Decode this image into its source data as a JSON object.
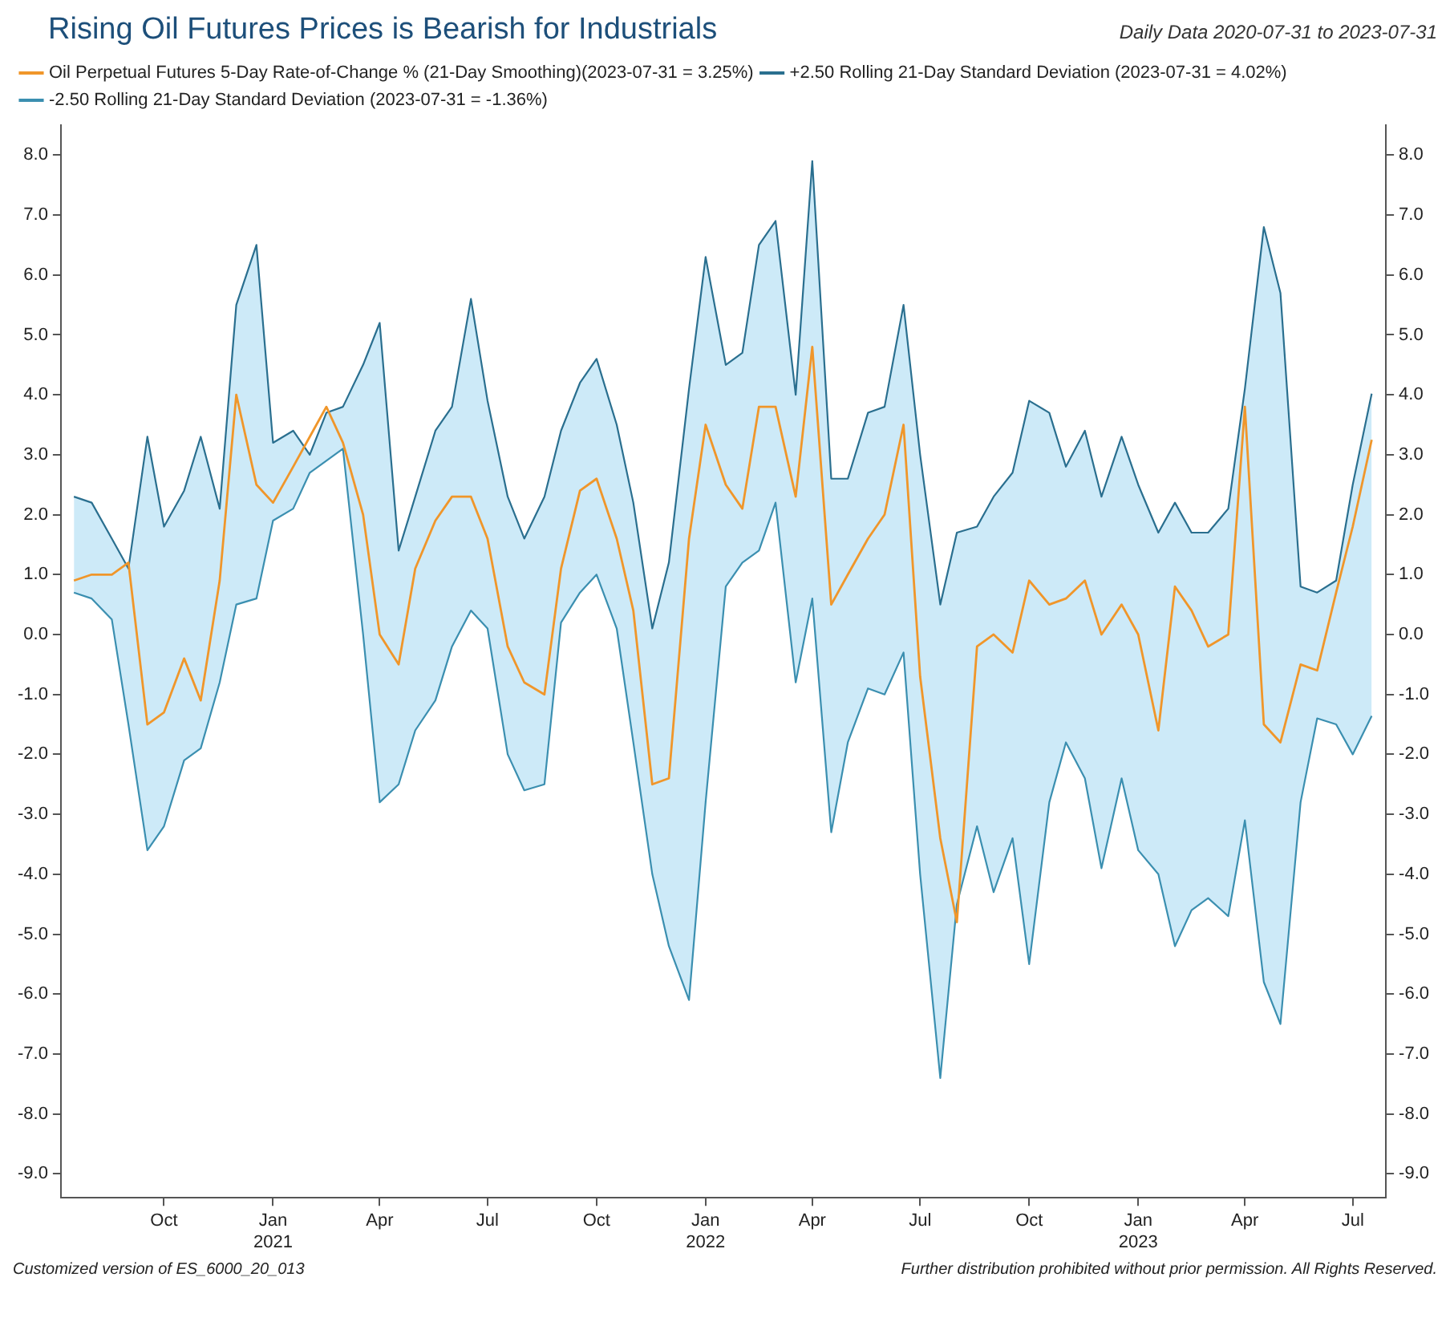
{
  "chart_data": {
    "type": "line",
    "title": "Rising Oil Futures Prices is Bearish for Industrials",
    "subtitle": "Daily Data 2020-07-31 to 2023-07-31",
    "x": [
      "2020-07-31",
      "2020-08-15",
      "2020-09-01",
      "2020-09-15",
      "2020-10-01",
      "2020-10-15",
      "2020-11-01",
      "2020-11-15",
      "2020-12-01",
      "2020-12-15",
      "2021-01-01",
      "2021-01-15",
      "2021-02-01",
      "2021-02-15",
      "2021-03-01",
      "2021-03-15",
      "2021-04-01",
      "2021-04-15",
      "2021-05-01",
      "2021-05-15",
      "2021-06-01",
      "2021-06-15",
      "2021-07-01",
      "2021-07-15",
      "2021-08-01",
      "2021-08-15",
      "2021-09-01",
      "2021-09-15",
      "2021-10-01",
      "2021-10-15",
      "2021-11-01",
      "2021-11-15",
      "2021-12-01",
      "2021-12-15",
      "2022-01-01",
      "2022-01-15",
      "2022-02-01",
      "2022-02-15",
      "2022-03-01",
      "2022-03-15",
      "2022-04-01",
      "2022-04-15",
      "2022-05-01",
      "2022-05-15",
      "2022-06-01",
      "2022-06-15",
      "2022-07-01",
      "2022-07-15",
      "2022-08-01",
      "2022-08-15",
      "2022-09-01",
      "2022-09-15",
      "2022-10-01",
      "2022-10-15",
      "2022-11-01",
      "2022-11-15",
      "2022-12-01",
      "2022-12-15",
      "2023-01-01",
      "2023-01-15",
      "2023-02-01",
      "2023-02-15",
      "2023-03-01",
      "2023-03-15",
      "2023-04-01",
      "2023-04-15",
      "2023-05-01",
      "2023-05-15",
      "2023-06-01",
      "2023-06-15",
      "2023-07-01",
      "2023-07-15",
      "2023-07-31"
    ],
    "series": [
      {
        "name": "Oil Perpetual Futures 5-Day Rate-of-Change % (21-Day Smoothing)(2023-07-31 = 3.25%)",
        "color": "#f0962a",
        "upper": [
          2.3,
          2.2,
          1.6,
          1.1,
          3.3,
          1.8,
          2.4,
          3.3,
          2.1,
          5.5,
          6.5,
          3.2,
          3.4,
          3.0,
          3.7,
          3.8,
          4.5,
          5.2,
          1.4,
          2.3,
          3.4,
          3.8,
          5.6,
          3.9,
          2.3,
          1.6,
          2.3,
          3.4,
          4.2,
          4.6,
          3.5,
          2.2,
          0.1,
          1.2,
          4.1,
          6.3,
          4.5,
          4.7,
          6.5,
          6.9,
          4.0,
          7.9,
          2.6,
          2.6,
          3.7,
          3.8,
          5.5,
          3.0,
          0.5,
          1.7,
          1.8,
          2.3,
          2.7,
          3.9,
          3.7,
          2.8,
          3.4,
          2.3,
          3.3,
          2.5,
          1.7,
          2.2,
          1.7,
          1.7,
          2.1,
          4.1,
          6.8,
          5.7,
          0.8,
          0.7,
          0.9,
          2.5,
          4.02
        ],
        "lower": [
          0.7,
          0.6,
          0.25,
          -1.5,
          -3.6,
          -3.2,
          -2.1,
          -1.9,
          -0.8,
          0.5,
          0.6,
          1.9,
          2.1,
          2.7,
          2.9,
          3.1,
          0.0,
          -2.8,
          -2.5,
          -1.6,
          -1.1,
          -0.2,
          0.4,
          0.1,
          -2.0,
          -2.6,
          -2.5,
          0.2,
          0.7,
          1.0,
          0.1,
          -1.8,
          -4.0,
          -5.2,
          -6.1,
          -2.8,
          0.8,
          1.2,
          1.4,
          2.2,
          -0.8,
          0.6,
          -3.3,
          -1.8,
          -0.9,
          -1.0,
          -0.3,
          -4.0,
          -7.4,
          -4.5,
          -3.2,
          -4.3,
          -3.4,
          -5.5,
          -2.8,
          -1.8,
          -2.4,
          -3.9,
          -2.4,
          -3.6,
          -4.0,
          -5.2,
          -4.6,
          -4.4,
          -4.7,
          -3.1,
          -5.8,
          -6.5,
          -2.8,
          -1.4,
          -1.5,
          -2.0,
          -1.36
        ],
        "values": [
          0.9,
          1.0,
          1.0,
          1.2,
          -1.5,
          -1.3,
          -0.4,
          -1.1,
          0.9,
          4.0,
          2.5,
          2.2,
          2.8,
          3.3,
          3.8,
          3.2,
          2.0,
          0.0,
          -0.5,
          1.1,
          1.9,
          2.3,
          2.3,
          1.6,
          -0.2,
          -0.8,
          -1.0,
          1.1,
          2.4,
          2.6,
          1.6,
          0.4,
          -2.5,
          -2.4,
          1.6,
          3.5,
          2.5,
          2.1,
          3.8,
          3.8,
          2.3,
          4.8,
          0.5,
          1.0,
          1.6,
          2.0,
          3.5,
          -0.7,
          -3.4,
          -4.8,
          -0.2,
          0.0,
          -0.3,
          0.9,
          0.5,
          0.6,
          0.9,
          0.0,
          0.5,
          0.0,
          -1.6,
          0.8,
          0.4,
          -0.2,
          0.0,
          3.8,
          -1.5,
          -1.8,
          -0.5,
          -0.6,
          0.7,
          1.8,
          3.25
        ]
      },
      {
        "name": "+2.50 Rolling 21-Day Standard Deviation (2023-07-31 = 4.02%)",
        "color": "#2a6f8f",
        "values": [
          2.3,
          2.2,
          1.6,
          1.1,
          3.3,
          1.8,
          2.4,
          3.3,
          2.1,
          5.5,
          6.5,
          3.2,
          3.4,
          3.0,
          3.7,
          3.8,
          4.5,
          5.2,
          1.4,
          2.3,
          3.4,
          3.8,
          5.6,
          3.9,
          2.3,
          1.6,
          2.3,
          3.4,
          4.2,
          4.6,
          3.5,
          2.2,
          0.1,
          1.2,
          4.1,
          6.3,
          4.5,
          4.7,
          6.5,
          6.9,
          4.0,
          7.9,
          2.6,
          2.6,
          3.7,
          3.8,
          5.5,
          3.0,
          0.5,
          1.7,
          1.8,
          2.3,
          2.7,
          3.9,
          3.7,
          2.8,
          3.4,
          2.3,
          3.3,
          2.5,
          1.7,
          2.2,
          1.7,
          1.7,
          2.1,
          4.1,
          6.8,
          5.7,
          0.8,
          0.7,
          0.9,
          2.5,
          4.02
        ]
      },
      {
        "name": "-2.50 Rolling 21-Day Standard Deviation (2023-07-31 = -1.36%)",
        "color": "#3b8fb0",
        "values": [
          0.7,
          0.6,
          0.25,
          -1.5,
          -3.6,
          -3.2,
          -2.1,
          -1.9,
          -0.8,
          0.5,
          0.6,
          1.9,
          2.1,
          2.7,
          2.9,
          3.1,
          0.0,
          -2.8,
          -2.5,
          -1.6,
          -1.1,
          -0.2,
          0.4,
          0.1,
          -2.0,
          -2.6,
          -2.5,
          0.2,
          0.7,
          1.0,
          0.1,
          -1.8,
          -4.0,
          -5.2,
          -6.1,
          -2.8,
          0.8,
          1.2,
          1.4,
          2.2,
          -0.8,
          0.6,
          -3.3,
          -1.8,
          -0.9,
          -1.0,
          -0.3,
          -4.0,
          -7.4,
          -4.5,
          -3.2,
          -4.3,
          -3.4,
          -5.5,
          -2.8,
          -1.8,
          -2.4,
          -3.9,
          -2.4,
          -3.6,
          -4.0,
          -5.2,
          -4.6,
          -4.4,
          -4.7,
          -3.1,
          -5.8,
          -6.5,
          -2.8,
          -1.4,
          -1.5,
          -2.0,
          -1.36
        ]
      }
    ],
    "xlim": [
      "2020-07-20",
      "2023-08-12"
    ],
    "xticks": [
      {
        "value": "2020-10-15",
        "label": "Oct"
      },
      {
        "value": "2021-01-15",
        "label": "Jan 2021"
      },
      {
        "value": "2021-04-15",
        "label": "Apr"
      },
      {
        "value": "2021-07-15",
        "label": "Jul"
      },
      {
        "value": "2021-10-15",
        "label": "Oct"
      },
      {
        "value": "2022-01-15",
        "label": "Jan 2022"
      },
      {
        "value": "2022-04-15",
        "label": "Apr"
      },
      {
        "value": "2022-07-15",
        "label": "Jul"
      },
      {
        "value": "2022-10-15",
        "label": "Oct"
      },
      {
        "value": "2023-01-15",
        "label": "Jan 2023"
      },
      {
        "value": "2023-04-15",
        "label": "Apr"
      },
      {
        "value": "2023-07-15",
        "label": "Jul"
      }
    ],
    "ylim": [
      -9.4,
      8.5
    ],
    "yticks": [
      {
        "value": -9,
        "label": "-9.0"
      },
      {
        "value": -8,
        "label": "-8.0"
      },
      {
        "value": -7,
        "label": "-7.0"
      },
      {
        "value": -6,
        "label": "-6.0"
      },
      {
        "value": -5,
        "label": "-5.0"
      },
      {
        "value": -4,
        "label": "-4.0"
      },
      {
        "value": -3,
        "label": "-3.0"
      },
      {
        "value": -2,
        "label": "-2.0"
      },
      {
        "value": -1,
        "label": "-1.0"
      },
      {
        "value": 0,
        "label": "0.0"
      },
      {
        "value": 1,
        "label": "1.0"
      },
      {
        "value": 2,
        "label": "2.0"
      },
      {
        "value": 3,
        "label": "3.0"
      },
      {
        "value": 4,
        "label": "4.0"
      },
      {
        "value": 5,
        "label": "5.0"
      },
      {
        "value": 6,
        "label": "6.0"
      },
      {
        "value": 7,
        "label": "7.0"
      },
      {
        "value": 8,
        "label": "8.0"
      }
    ],
    "y2lim": [
      -9.4,
      8.5
    ],
    "y2ticks": [
      {
        "value": -9,
        "label": "-9.0"
      },
      {
        "value": -8,
        "label": "-8.0"
      },
      {
        "value": -7,
        "label": "-7.0"
      },
      {
        "value": -6,
        "label": "-6.0"
      },
      {
        "value": -5,
        "label": "-5.0"
      },
      {
        "value": -4,
        "label": "-4.0"
      },
      {
        "value": -3,
        "label": "-3.0"
      },
      {
        "value": -2,
        "label": "-2.0"
      },
      {
        "value": -1,
        "label": "-1.0"
      },
      {
        "value": 0,
        "label": "0.0"
      },
      {
        "value": 1,
        "label": "1.0"
      },
      {
        "value": 2,
        "label": "2.0"
      },
      {
        "value": 3,
        "label": "3.0"
      },
      {
        "value": 4,
        "label": "4.0"
      },
      {
        "value": 5,
        "label": "5.0"
      },
      {
        "value": 6,
        "label": "6.0"
      },
      {
        "value": 7,
        "label": "7.0"
      },
      {
        "value": 8,
        "label": "8.0"
      }
    ],
    "grid": false,
    "legend": "top left",
    "line_style": "solid",
    "annotations": [
      "Customized version of ES_6000_20_013",
      "Further distribution prohibited without prior permission. All Rights Reserved."
    ]
  }
}
